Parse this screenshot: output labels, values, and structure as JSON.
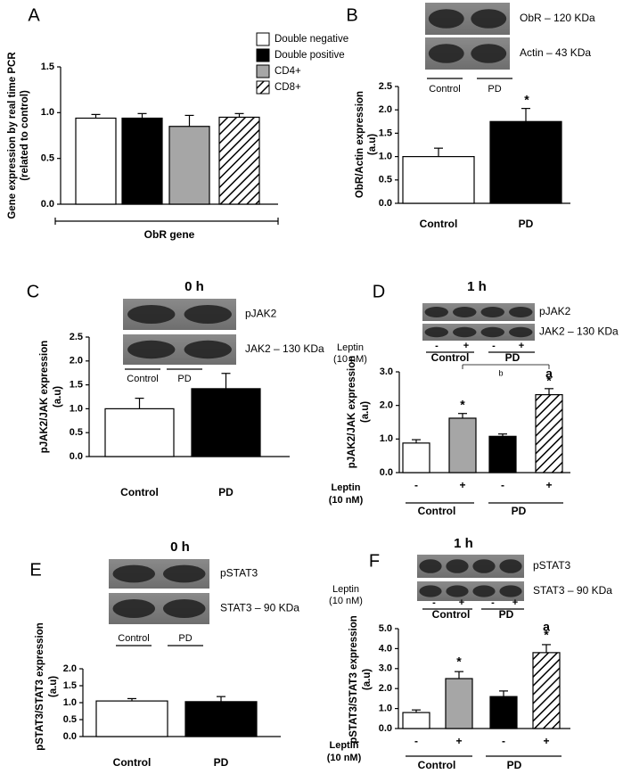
{
  "chart_data": [
    {
      "type": "bar",
      "panel": "A",
      "ylabel": [
        "Gene expression by real time PCR",
        "(related to control)"
      ],
      "categories": [
        "ObR gene"
      ],
      "series": [
        {
          "name": "Double negative",
          "color": "#ffffff",
          "values": [
            0.94
          ],
          "errors": [
            0.04
          ]
        },
        {
          "name": "Double positive",
          "color": "#000000",
          "values": [
            0.94
          ],
          "errors": [
            0.05
          ]
        },
        {
          "name": "CD4+",
          "color": "#a6a6a6",
          "values": [
            0.85
          ],
          "errors": [
            0.12
          ]
        },
        {
          "name": "CD8+",
          "color": "#ffffff",
          "hatch": true,
          "values": [
            0.95
          ],
          "errors": [
            0.04
          ]
        }
      ],
      "ylim": [
        0,
        1.5
      ],
      "yticks": [
        {
          "value": 0,
          "label": "0.0"
        },
        0.5,
        {
          "value": 1,
          "label": "1.0"
        },
        1.5
      ],
      "legend": "upper right"
    },
    {
      "type": "bar",
      "panel": "B",
      "blot": {
        "bands": [
          "ObR – 120 KDa",
          "Actin – 43 KDa"
        ],
        "lanes": [
          "Control",
          "PD"
        ]
      },
      "ylabel": [
        "ObR/Actin expression",
        "(a.u)"
      ],
      "categories": [
        "Control",
        "PD"
      ],
      "values": [
        1.0,
        1.75
      ],
      "errors": [
        0.18,
        0.28
      ],
      "colors": [
        "#ffffff",
        "#000000"
      ],
      "hatched": [
        false,
        false
      ],
      "ylim": [
        0,
        2.5
      ],
      "yticks": [
        {
          "value": 0,
          "label": "0.0"
        },
        0.5,
        {
          "value": 1,
          "label": "1.0"
        },
        1.5,
        {
          "value": 2,
          "label": "2.0"
        },
        2.5
      ],
      "annotations": [
        "*"
      ]
    },
    {
      "type": "bar",
      "panel": "C",
      "title": "0 h",
      "blot": {
        "bands": [
          "pJAK2",
          "JAK2 – 130 KDa"
        ],
        "lanes": [
          "Control",
          "PD"
        ]
      },
      "ylabel": [
        "pJAK2/JAK expression",
        "(a.u)"
      ],
      "categories": [
        "Control",
        "PD"
      ],
      "values": [
        1.0,
        1.42
      ],
      "errors": [
        0.22,
        0.32
      ],
      "colors": [
        "#ffffff",
        "#000000"
      ],
      "hatched": [
        false,
        false
      ],
      "ylim": [
        0,
        2.5
      ],
      "yticks": [
        {
          "value": 0,
          "label": "0.0"
        },
        0.5,
        {
          "value": 1,
          "label": "1.0"
        },
        1.5,
        {
          "value": 2,
          "label": "2.0"
        },
        2.5
      ]
    },
    {
      "type": "bar",
      "panel": "D",
      "title": "1 h",
      "blot": {
        "bands": [
          "pJAK2",
          "JAK2 – 130 KDa"
        ],
        "treatment": [
          "Leptin",
          "(10 nM)"
        ],
        "lanes": [
          "-",
          "+",
          "-",
          "+"
        ],
        "groups": [
          "Control",
          "PD"
        ]
      },
      "ylabel": [
        "pJAK2/JAK expression",
        "(a.u)"
      ],
      "categories": [
        "-",
        "+",
        "-",
        "+"
      ],
      "treatment": [
        "Leptin",
        "(10 nM)"
      ],
      "groups": [
        "Control",
        "PD"
      ],
      "values": [
        0.88,
        1.62,
        1.08,
        2.32
      ],
      "errors": [
        0.1,
        0.14,
        0.07,
        0.18
      ],
      "colors": [
        "#ffffff",
        "#a6a6a6",
        "#000000",
        "#ffffff"
      ],
      "hatched": [
        false,
        false,
        false,
        true
      ],
      "ylim": [
        0,
        3
      ],
      "yticks": [
        {
          "value": 0,
          "label": "0.0"
        },
        {
          "value": 1,
          "label": "1.0"
        },
        {
          "value": 2,
          "label": "2.0"
        },
        {
          "value": 3,
          "label": "3.0"
        }
      ],
      "annotations": [
        "*",
        "*",
        "a",
        "b"
      ]
    },
    {
      "type": "bar",
      "panel": "E",
      "title": "0 h",
      "blot": {
        "bands": [
          "pSTAT3",
          "STAT3 – 90 KDa"
        ],
        "lanes": [
          "Control",
          "PD"
        ]
      },
      "ylabel": [
        "pSTAT3/STAT3 expression",
        "(a.u)"
      ],
      "categories": [
        "Control",
        "PD"
      ],
      "values": [
        1.05,
        1.03
      ],
      "errors": [
        0.07,
        0.15
      ],
      "colors": [
        "#ffffff",
        "#000000"
      ],
      "hatched": [
        false,
        false
      ],
      "ylim": [
        0,
        2
      ],
      "yticks": [
        {
          "value": 0,
          "label": "0.0"
        },
        0.5,
        {
          "value": 1,
          "label": "1.0"
        },
        1.5,
        {
          "value": 2,
          "label": "2.0"
        }
      ]
    },
    {
      "type": "bar",
      "panel": "F",
      "title": "1 h",
      "blot": {
        "bands": [
          "pSTAT3",
          "STAT3 – 90 KDa"
        ],
        "treatment": [
          "Leptin",
          "(10 nM)"
        ],
        "lanes": [
          "-",
          "+",
          "-",
          "+"
        ],
        "groups": [
          "Control",
          "PD"
        ]
      },
      "ylabel": [
        "pSTAT3/STAT3 expression",
        "(a.u)"
      ],
      "categories": [
        "-",
        "+",
        "-",
        "+"
      ],
      "treatment": [
        "Leptin",
        "(10 nM)"
      ],
      "groups": [
        "Control",
        "PD"
      ],
      "values": [
        0.8,
        2.5,
        1.6,
        3.8
      ],
      "errors": [
        0.13,
        0.35,
        0.28,
        0.4
      ],
      "colors": [
        "#ffffff",
        "#a6a6a6",
        "#000000",
        "#ffffff"
      ],
      "hatched": [
        false,
        false,
        false,
        true
      ],
      "ylim": [
        0,
        5
      ],
      "yticks": [
        {
          "value": 0,
          "label": "0.0"
        },
        {
          "value": 1,
          "label": "1.0"
        },
        {
          "value": 2,
          "label": "2.0"
        },
        {
          "value": 3,
          "label": "3.0"
        },
        {
          "value": 4,
          "label": "4.0"
        },
        {
          "value": 5,
          "label": "5.0"
        }
      ],
      "annotations": [
        "*",
        "*",
        "a"
      ]
    }
  ]
}
